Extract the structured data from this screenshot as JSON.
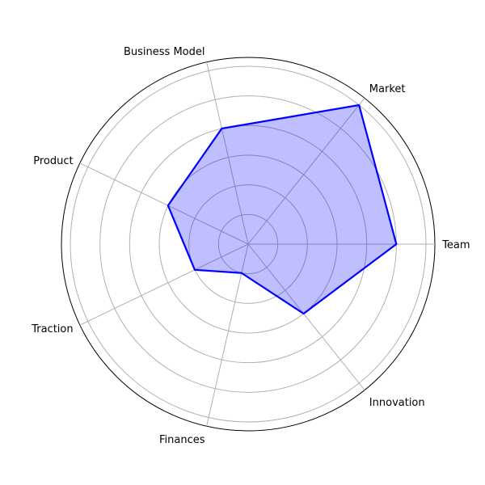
{
  "chart_data": {
    "type": "radar",
    "title": "",
    "categories": [
      "Team",
      "Market",
      "Business Model",
      "Product",
      "Traction",
      "Finances",
      "Innovation"
    ],
    "series": [
      {
        "values": [
          5,
          6,
          4,
          3,
          2,
          1,
          3
        ],
        "line_color": "#0000ff",
        "fill_color": "#0000ff",
        "fill_opacity": 0.25
      }
    ],
    "rlim": [
      0,
      6.3
    ],
    "rgrid": [
      1,
      2,
      3,
      4,
      5,
      6
    ],
    "rtick_labels_shown": false,
    "grid": true,
    "frame_color": "#000000",
    "grid_color": "#b0b0b0"
  }
}
